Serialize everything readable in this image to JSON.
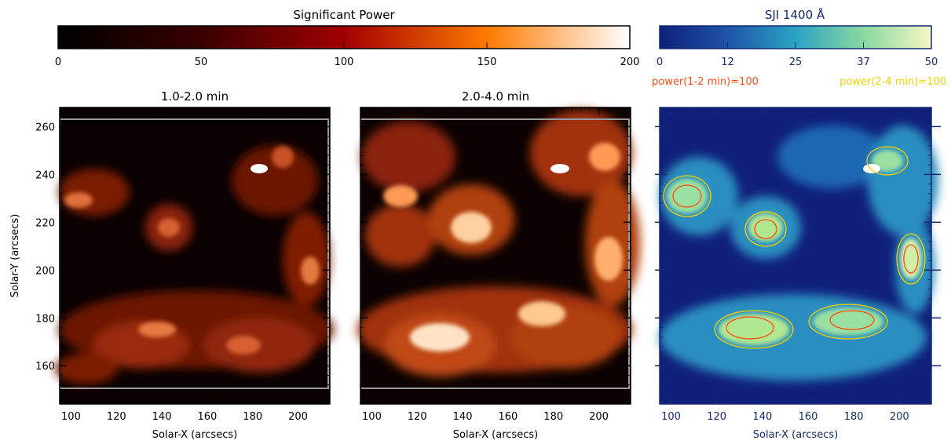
{
  "colorbar_power": {
    "title": "Significant Power",
    "ticks": [
      "0",
      "50",
      "100",
      "150",
      "200"
    ],
    "colors": [
      "#000000",
      "#3a0000",
      "#a00000",
      "#ff7a00",
      "#ffffff"
    ]
  },
  "colorbar_sji": {
    "title": "SJI 1400 Å",
    "ticks": [
      "0",
      "12",
      "25",
      "37",
      "50"
    ],
    "colors": [
      "#101f7a",
      "#1d55a8",
      "#2ba3c4",
      "#8ad8a0",
      "#f4f7c4"
    ],
    "text_color": "#142a6e"
  },
  "legend": {
    "contour_1": {
      "label": "power(1-2 min)=100",
      "color": "#ff4b12"
    },
    "contour_2": {
      "label": "power(2-4 min)=100",
      "color": "#f4d000"
    }
  },
  "panels": [
    {
      "id": "p1",
      "title": "1.0-2.0 min"
    },
    {
      "id": "p2",
      "title": "2.0-4.0 min"
    },
    {
      "id": "p3",
      "title": ""
    }
  ],
  "axes": {
    "x_label": "Solar-X (arcsecs)",
    "y_label": "Solar-Y (arcsecs)",
    "x_ticks": [
      "100",
      "120",
      "140",
      "160",
      "180",
      "200"
    ],
    "y_ticks": [
      "160",
      "180",
      "200",
      "220",
      "240",
      "260"
    ],
    "x_range": [
      95,
      214
    ],
    "y_range": [
      144,
      268
    ]
  }
}
